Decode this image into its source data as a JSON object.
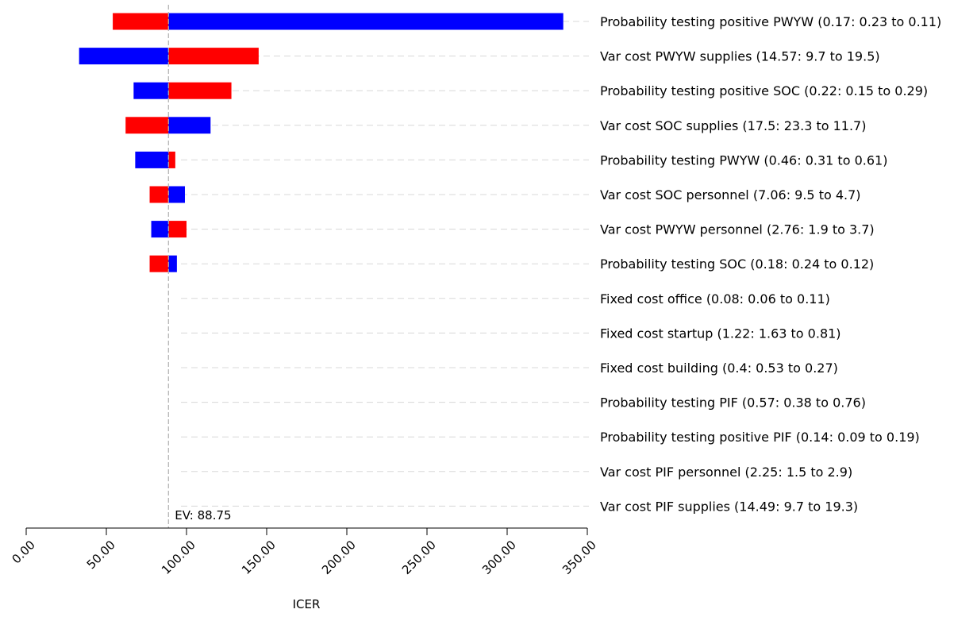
{
  "chart_data": {
    "type": "tornado",
    "title": "",
    "xlabel": "ICER",
    "ylabel": "",
    "xlim": [
      0,
      350
    ],
    "xticks": [
      "0.00",
      "50.00",
      "100.00",
      "150.00",
      "200.00",
      "250.00",
      "300.00",
      "350.00"
    ],
    "ev": {
      "value": 88.75,
      "label": "EV: 88.75"
    },
    "colors": {
      "low": "#ff0000",
      "high": "#0000ff",
      "ev_line": "#b0b0b0",
      "grid": "#d8d8d8"
    },
    "rows": [
      {
        "label": "Probability testing positive PWYW (0.17: 0.23 to 0.11)",
        "low_input_result": 54,
        "high_input_result": 335
      },
      {
        "label": "Var cost PWYW supplies (14.57: 9.7 to 19.5)",
        "low_input_result": 145,
        "high_input_result": 33
      },
      {
        "label": "Probability testing positive SOC (0.22: 0.15 to 0.29)",
        "low_input_result": 128,
        "high_input_result": 67
      },
      {
        "label": "Var cost SOC supplies (17.5: 23.3 to 11.7)",
        "low_input_result": 62,
        "high_input_result": 115
      },
      {
        "label": "Probability testing PWYW (0.46: 0.31 to 0.61)",
        "low_input_result": 93,
        "high_input_result": 68
      },
      {
        "label": "Var cost SOC personnel (7.06: 9.5 to 4.7)",
        "low_input_result": 77,
        "high_input_result": 99
      },
      {
        "label": "Var cost PWYW personnel (2.76: 1.9 to 3.7)",
        "low_input_result": 100,
        "high_input_result": 78
      },
      {
        "label": "Probability testing SOC (0.18: 0.24 to 0.12)",
        "low_input_result": 77,
        "high_input_result": 94
      },
      {
        "label": "Fixed cost office (0.08: 0.06 to 0.11)",
        "low_input_result": 88.75,
        "high_input_result": 88.75
      },
      {
        "label": "Fixed cost startup (1.22: 1.63 to 0.81)",
        "low_input_result": 88.75,
        "high_input_result": 88.75
      },
      {
        "label": "Fixed cost building (0.4: 0.53 to 0.27)",
        "low_input_result": 88.75,
        "high_input_result": 88.75
      },
      {
        "label": "Probability testing PIF (0.57: 0.38 to 0.76)",
        "low_input_result": 88.75,
        "high_input_result": 88.75
      },
      {
        "label": "Probability testing positive PIF (0.14: 0.09 to 0.19)",
        "low_input_result": 88.75,
        "high_input_result": 88.75
      },
      {
        "label": "Var cost PIF personnel (2.25: 1.5 to 2.9)",
        "low_input_result": 88.75,
        "high_input_result": 88.75
      },
      {
        "label": "Var cost PIF supplies (14.49: 9.7 to 19.3)",
        "low_input_result": 88.75,
        "high_input_result": 88.75
      }
    ]
  }
}
